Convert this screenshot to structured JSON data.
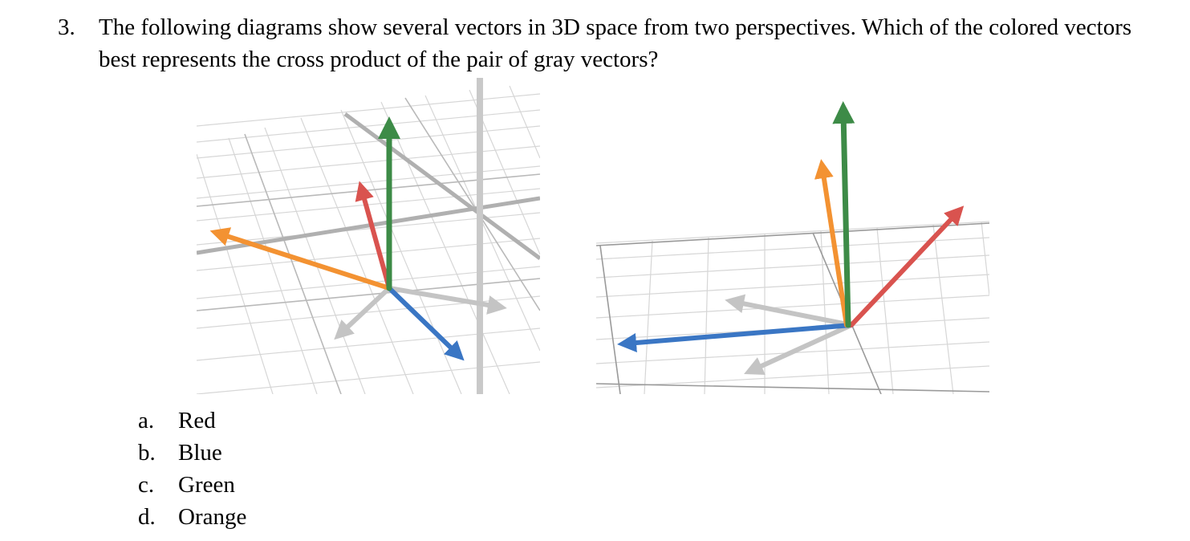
{
  "question": {
    "number": "3.",
    "text": "The following diagrams show several vectors in 3D space from two perspectives. Which of the colored vectors best represents the cross product of the pair of gray vectors?"
  },
  "figures": [
    {
      "perspective": "left",
      "vectors": [
        "green",
        "red",
        "orange",
        "blue",
        "gray",
        "gray"
      ]
    },
    {
      "perspective": "right",
      "vectors": [
        "green",
        "orange",
        "red",
        "blue",
        "gray",
        "gray"
      ]
    }
  ],
  "colors": {
    "red": "#d9534f",
    "green": "#3d8b47",
    "orange": "#f39232",
    "blue": "#3a76c4",
    "gray": "#c4c4c4",
    "grid": "#d4d4d4",
    "axis": "#a8a8a8"
  },
  "options": [
    {
      "letter": "a.",
      "text": "Red"
    },
    {
      "letter": "b.",
      "text": "Blue"
    },
    {
      "letter": "c.",
      "text": "Green"
    },
    {
      "letter": "d.",
      "text": "Orange"
    }
  ]
}
